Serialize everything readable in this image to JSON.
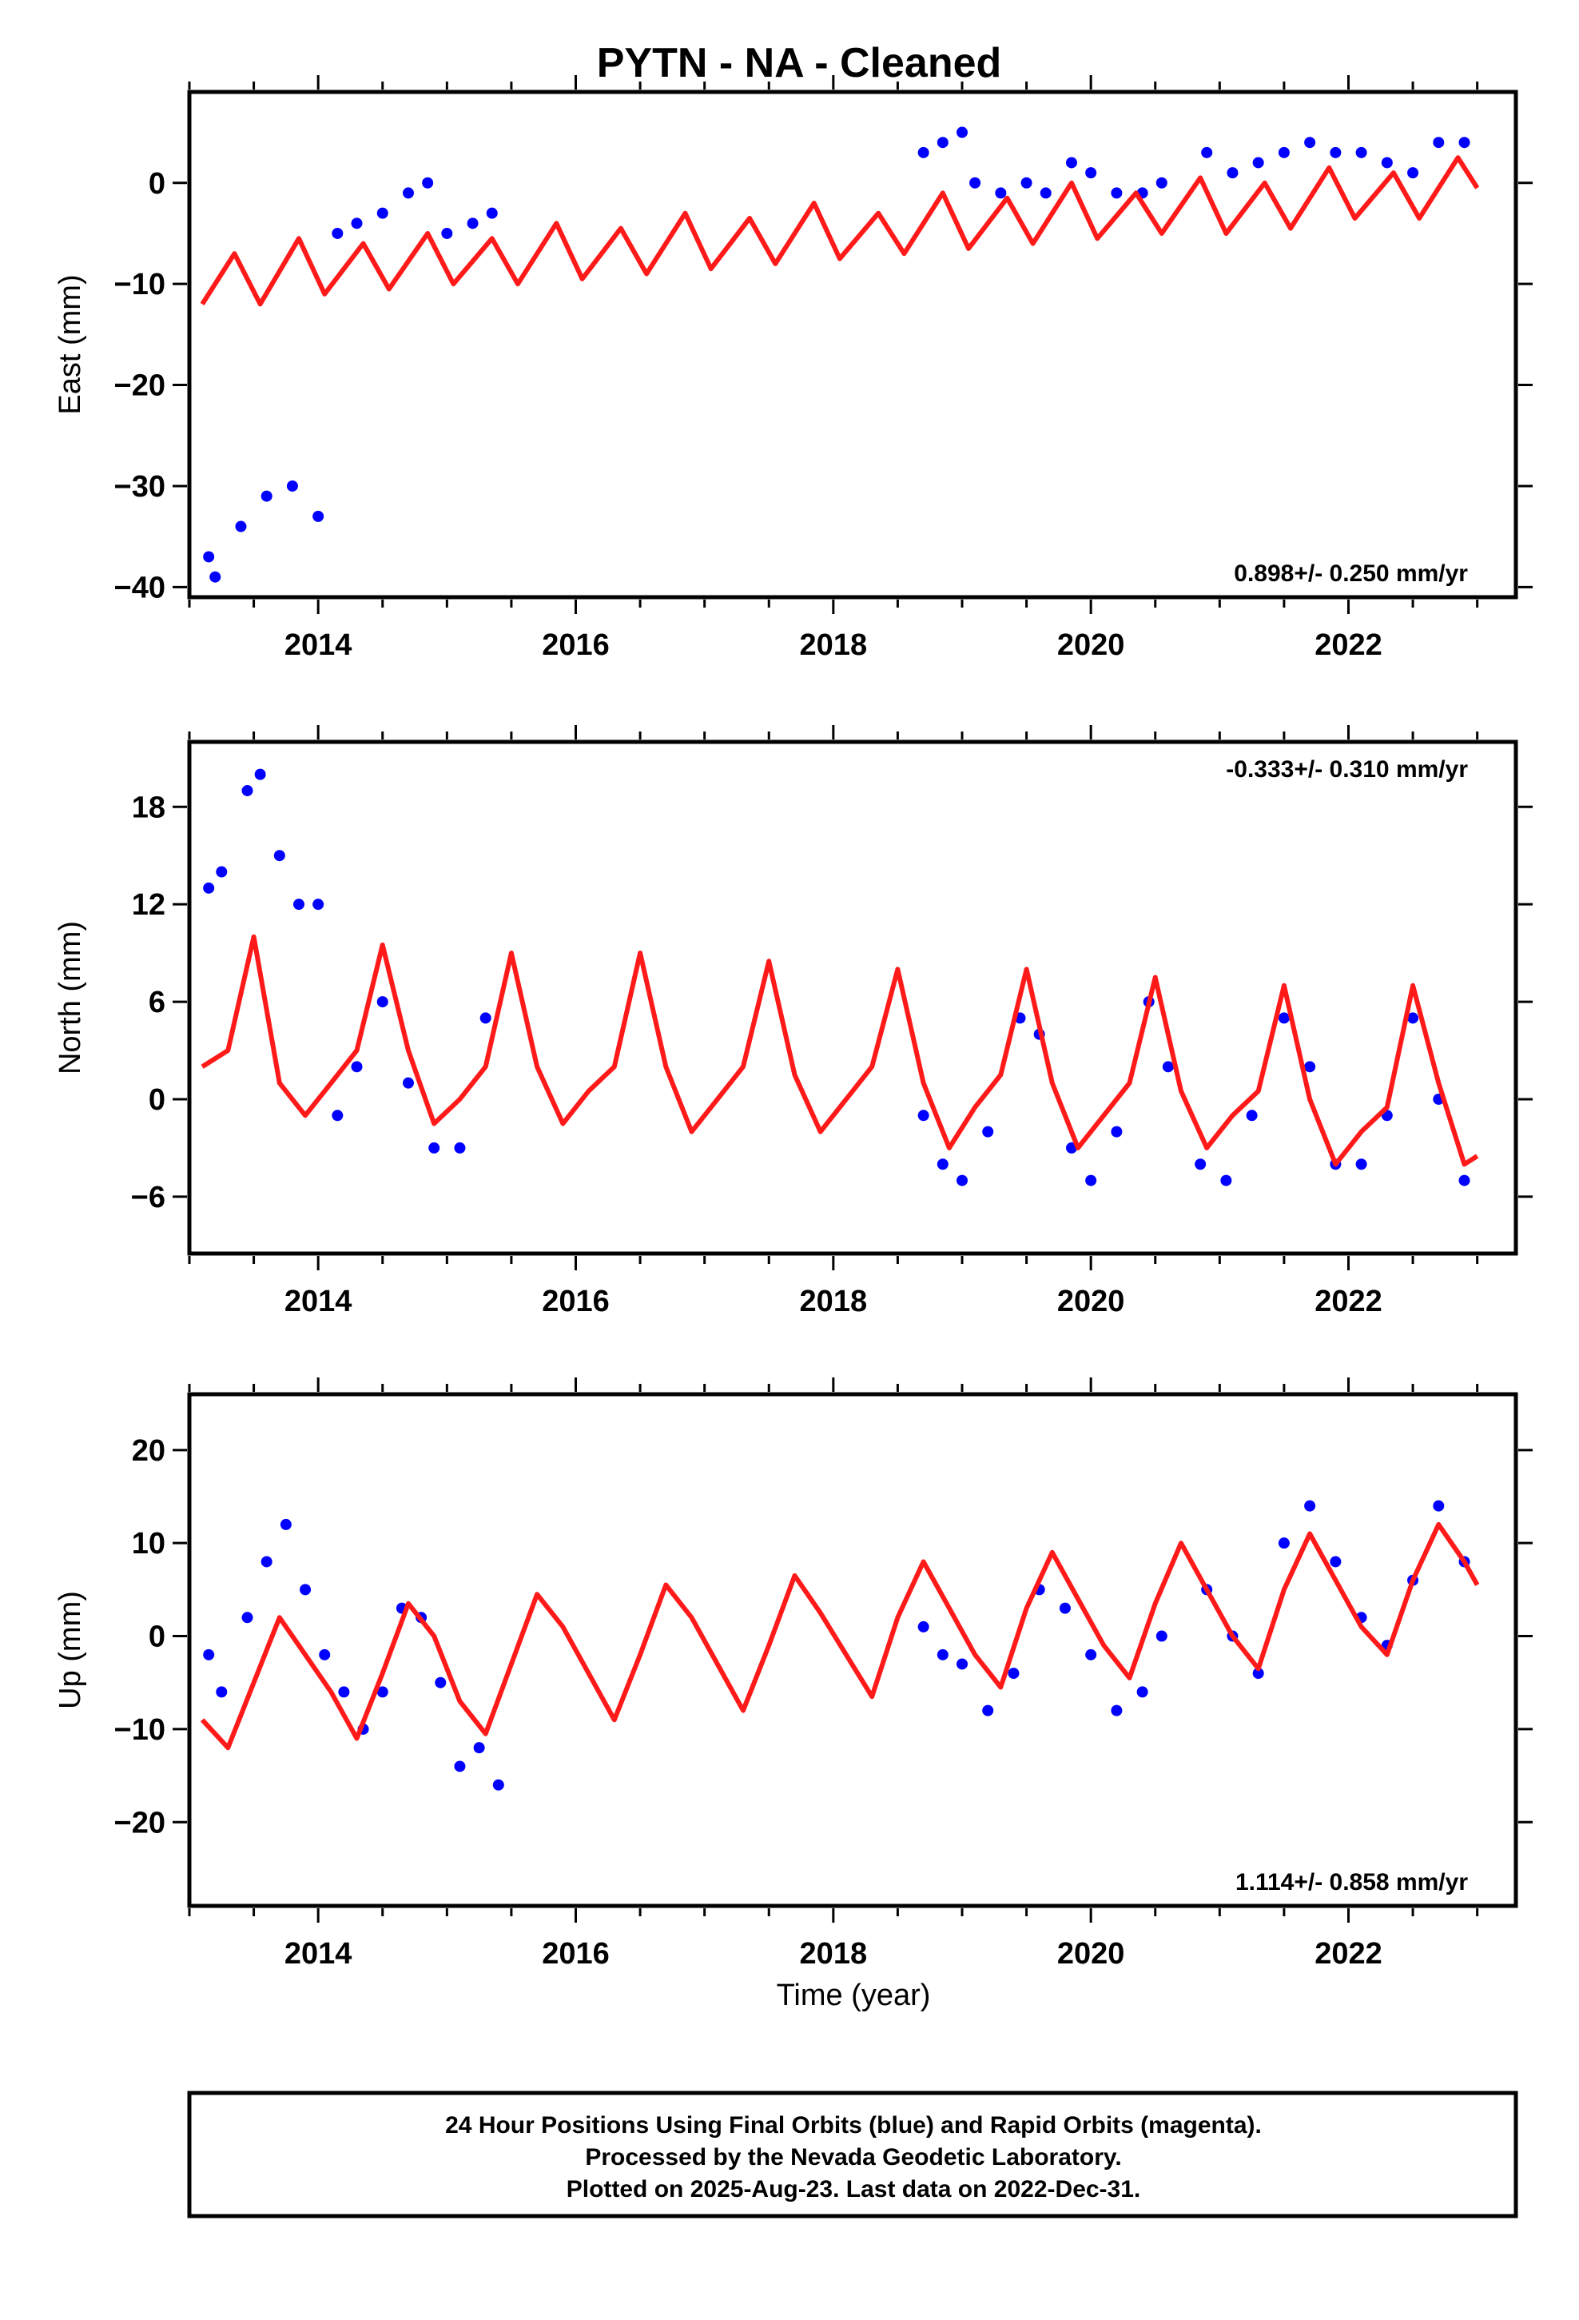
{
  "title": "PYTN  - NA - Cleaned",
  "xlabel": "Time (year)",
  "colors": {
    "data": "#0000ff",
    "model": "#ff1a1a",
    "axes": "#000000"
  },
  "footer": {
    "line1": "24 Hour Positions Using Final Orbits (blue) and Rapid Orbits (magenta).",
    "line2": "Processed by the Nevada Geodetic Laboratory.",
    "line3": "Plotted on 2025-Aug-23. Last data on 2022-Dec-31."
  },
  "chart_data": [
    {
      "type": "scatter",
      "ylabel": "East (mm)",
      "rate": "0.898+/- 0.250 mm/yr",
      "xlim": [
        2013.0,
        2023.3
      ],
      "ylim": [
        -41,
        9
      ],
      "xticks": [
        2014,
        2016,
        2018,
        2020,
        2022
      ],
      "yticks": [
        -40,
        -30,
        -20,
        -10,
        0
      ],
      "series": [
        {
          "type": "scatter",
          "x": [
            2013.15,
            2013.2,
            2013.4,
            2013.6,
            2013.8,
            2014.0,
            2014.15,
            2014.3,
            2014.5,
            2014.7,
            2014.85,
            2015.0,
            2015.2,
            2015.35,
            2018.7,
            2018.85,
            2019.0,
            2019.1,
            2019.3,
            2019.5,
            2019.65,
            2019.85,
            2020.0,
            2020.2,
            2020.4,
            2020.55,
            2020.9,
            2021.1,
            2021.3,
            2021.5,
            2021.7,
            2021.9,
            2022.1,
            2022.3,
            2022.5,
            2022.7,
            2022.9
          ],
          "y": [
            -37,
            -39,
            -34,
            -31,
            -30,
            -33,
            -5,
            -4,
            -3,
            -1,
            0,
            -5,
            -4,
            -3,
            3,
            4,
            5,
            0,
            -1,
            0,
            -1,
            2,
            1,
            -1,
            -1,
            0,
            3,
            1,
            2,
            3,
            4,
            3,
            3,
            2,
            1,
            4,
            4
          ]
        },
        {
          "type": "line",
          "x": [
            2013.1,
            2013.35,
            2013.55,
            2013.85,
            2014.05,
            2014.35,
            2014.55,
            2014.85,
            2015.05,
            2015.35,
            2015.55,
            2015.85,
            2016.05,
            2016.35,
            2016.55,
            2016.85,
            2017.05,
            2017.35,
            2017.55,
            2017.85,
            2018.05,
            2018.35,
            2018.55,
            2018.85,
            2019.05,
            2019.35,
            2019.55,
            2019.85,
            2020.05,
            2020.35,
            2020.55,
            2020.85,
            2021.05,
            2021.35,
            2021.55,
            2021.85,
            2022.05,
            2022.35,
            2022.55,
            2022.85,
            2023.0
          ],
          "y": [
            -12,
            -7,
            -12,
            -5.5,
            -11,
            -6,
            -10.5,
            -5,
            -10,
            -5.5,
            -10,
            -4,
            -9.5,
            -4.5,
            -9,
            -3,
            -8.5,
            -3.5,
            -8,
            -2,
            -7.5,
            -3,
            -7,
            -1,
            -6.5,
            -1.5,
            -6,
            0,
            -5.5,
            -1,
            -5,
            0.5,
            -5,
            0,
            -4.5,
            1.5,
            -3.5,
            1,
            -3.5,
            2.5,
            -0.5
          ]
        }
      ]
    },
    {
      "type": "scatter",
      "ylabel": "North (mm)",
      "rate": "-0.333+/- 0.310 mm/yr",
      "xlim": [
        2013.0,
        2023.3
      ],
      "ylim": [
        -9.5,
        22
      ],
      "xticks": [
        2014,
        2016,
        2018,
        2020,
        2022
      ],
      "yticks": [
        -6,
        0,
        6,
        12,
        18
      ],
      "series": [
        {
          "type": "scatter",
          "x": [
            2013.15,
            2013.25,
            2013.45,
            2013.55,
            2013.7,
            2013.85,
            2014.0,
            2014.15,
            2014.3,
            2014.5,
            2014.7,
            2014.9,
            2015.1,
            2015.3,
            2018.7,
            2018.85,
            2019.0,
            2019.2,
            2019.45,
            2019.6,
            2019.85,
            2020.0,
            2020.2,
            2020.45,
            2020.6,
            2020.85,
            2021.05,
            2021.25,
            2021.5,
            2021.7,
            2021.9,
            2022.1,
            2022.3,
            2022.5,
            2022.7,
            2022.9
          ],
          "y": [
            13,
            14,
            19,
            20,
            15,
            12,
            12,
            -1,
            2,
            6,
            1,
            -3,
            -3,
            5,
            -1,
            -4,
            -5,
            -2,
            5,
            4,
            -3,
            -5,
            -2,
            6,
            2,
            -4,
            -5,
            -1,
            5,
            2,
            -4,
            -4,
            -1,
            5,
            0,
            -5
          ]
        },
        {
          "type": "line",
          "x": [
            2013.1,
            2013.3,
            2013.5,
            2013.7,
            2013.9,
            2014.1,
            2014.3,
            2014.5,
            2014.7,
            2014.9,
            2015.1,
            2015.3,
            2015.5,
            2015.7,
            2015.9,
            2016.1,
            2016.3,
            2016.5,
            2016.7,
            2016.9,
            2017.1,
            2017.3,
            2017.5,
            2017.7,
            2017.9,
            2018.1,
            2018.3,
            2018.5,
            2018.7,
            2018.9,
            2019.1,
            2019.3,
            2019.5,
            2019.7,
            2019.9,
            2020.1,
            2020.3,
            2020.5,
            2020.7,
            2020.9,
            2021.1,
            2021.3,
            2021.5,
            2021.7,
            2021.9,
            2022.1,
            2022.3,
            2022.5,
            2022.7,
            2022.9,
            2023.0
          ],
          "y": [
            2,
            3,
            10,
            1,
            -1,
            1,
            3,
            9.5,
            3,
            -1.5,
            0,
            2,
            9,
            2,
            -1.5,
            0.5,
            2,
            9,
            2,
            -2,
            0,
            2,
            8.5,
            1.5,
            -2,
            0,
            2,
            8,
            1,
            -3,
            -0.5,
            1.5,
            8,
            1,
            -3,
            -1,
            1,
            7.5,
            0.5,
            -3,
            -1,
            0.5,
            7,
            0,
            -4,
            -2,
            -0.5,
            7,
            1,
            -4,
            -3.5
          ]
        }
      ]
    },
    {
      "type": "scatter",
      "ylabel": "Up (mm)",
      "rate": "1.114+/- 0.858 mm/yr",
      "xlim": [
        2013.0,
        2023.3
      ],
      "ylim": [
        -29,
        26
      ],
      "xticks": [
        2014,
        2016,
        2018,
        2020,
        2022
      ],
      "yticks": [
        -20,
        -10,
        0,
        10,
        20
      ],
      "series": [
        {
          "type": "scatter",
          "x": [
            2013.15,
            2013.25,
            2013.45,
            2013.6,
            2013.75,
            2013.9,
            2014.05,
            2014.2,
            2014.35,
            2014.5,
            2014.65,
            2014.8,
            2014.95,
            2015.1,
            2015.25,
            2015.4,
            2018.7,
            2018.85,
            2019.0,
            2019.2,
            2019.4,
            2019.6,
            2019.8,
            2020.0,
            2020.2,
            2020.4,
            2020.55,
            2020.9,
            2021.1,
            2021.3,
            2021.5,
            2021.7,
            2021.9,
            2022.1,
            2022.3,
            2022.5,
            2022.7,
            2022.9
          ],
          "y": [
            -2,
            -6,
            2,
            8,
            12,
            5,
            -2,
            -6,
            -10,
            -6,
            3,
            2,
            -5,
            -14,
            -12,
            -16,
            1,
            -2,
            -3,
            -8,
            -4,
            5,
            3,
            -2,
            -8,
            -6,
            0,
            5,
            0,
            -4,
            10,
            14,
            8,
            2,
            -1,
            6,
            14,
            8
          ]
        },
        {
          "type": "line",
          "x": [
            2013.1,
            2013.3,
            2013.5,
            2013.7,
            2013.9,
            2014.1,
            2014.3,
            2014.5,
            2014.7,
            2014.9,
            2015.1,
            2015.3,
            2015.5,
            2015.7,
            2015.9,
            2016.1,
            2016.3,
            2016.5,
            2016.7,
            2016.9,
            2017.1,
            2017.3,
            2017.5,
            2017.7,
            2017.9,
            2018.1,
            2018.3,
            2018.5,
            2018.7,
            2018.9,
            2019.1,
            2019.3,
            2019.5,
            2019.7,
            2019.9,
            2020.1,
            2020.3,
            2020.5,
            2020.7,
            2020.9,
            2021.1,
            2021.3,
            2021.5,
            2021.7,
            2021.9,
            2022.1,
            2022.3,
            2022.5,
            2022.7,
            2022.9,
            2023.0
          ],
          "y": [
            -9,
            -12,
            -5,
            2,
            -2,
            -6,
            -11,
            -4,
            3.5,
            0,
            -7,
            -10.5,
            -3,
            4.5,
            1,
            -4,
            -9,
            -2,
            5.5,
            2,
            -3,
            -8,
            -1,
            6.5,
            2.5,
            -2,
            -6.5,
            2,
            8,
            3,
            -2,
            -5.5,
            3,
            9,
            4,
            -1,
            -4.5,
            3.5,
            10,
            5,
            0,
            -3.5,
            5,
            11,
            6,
            1,
            -2,
            6,
            12,
            8,
            5.5
          ]
        }
      ]
    }
  ]
}
